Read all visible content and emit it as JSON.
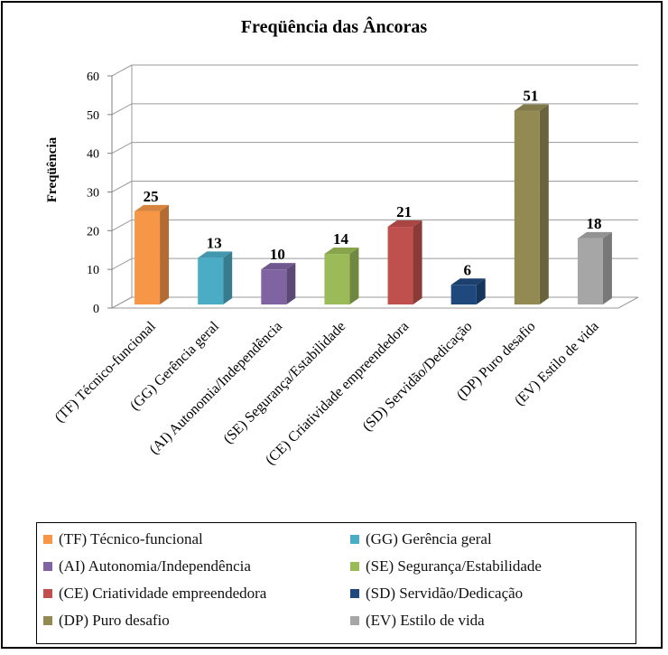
{
  "chart_data": {
    "type": "bar",
    "title": "Freqüência das Âncoras",
    "ylabel": "Freqüência",
    "xlabel": "",
    "ylim": [
      0,
      60
    ],
    "yticks": [
      0,
      10,
      20,
      30,
      40,
      50,
      60
    ],
    "grid": true,
    "legend_position": "bottom",
    "categories": [
      "(TF) Técnico-funcional",
      "(GG) Gerência geral",
      "(AI) Autonomia/Independência",
      "(SE) Segurança/Estabilidade",
      "(CE) Criatividade empreendedora",
      "(SD) Servidão/Dedicação",
      "(DP) Puro desafio",
      "(EV) Estilo de vida"
    ],
    "values": [
      25,
      13,
      10,
      14,
      21,
      6,
      51,
      18
    ],
    "colors": [
      "#f79646",
      "#4bacc6",
      "#8064a2",
      "#9bbb59",
      "#c0504d",
      "#1f497d",
      "#938953",
      "#a6a6a6"
    ]
  }
}
